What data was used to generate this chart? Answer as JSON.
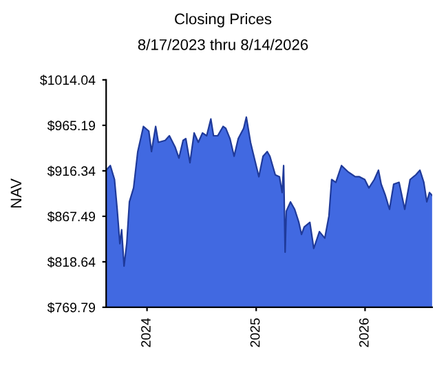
{
  "chart_data": {
    "type": "area",
    "title": "Closing Prices",
    "subtitle": "8/17/2023 thru 8/14/2026",
    "ylabel": "NAV",
    "xlim": [
      "2023-08-17",
      "2026-08-14"
    ],
    "xticks": [
      {
        "value": "2024-01-01",
        "label": "2024"
      },
      {
        "value": "2025-01-01",
        "label": "2025"
      },
      {
        "value": "2026-01-01",
        "label": "2026"
      }
    ],
    "ylim": [
      769.79,
      1014.04
    ],
    "yticks": [
      {
        "value": 769.79,
        "label": "$769.79"
      },
      {
        "value": 818.64,
        "label": "$818.64"
      },
      {
        "value": 867.49,
        "label": "$867.49"
      },
      {
        "value": 916.34,
        "label": "$916.34"
      },
      {
        "value": 965.19,
        "label": "$965.19"
      },
      {
        "value": 1014.04,
        "label": "$1014.04"
      }
    ],
    "grid": false,
    "x": [
      "2023-08-17",
      "2023-08-31",
      "2023-09-14",
      "2023-09-23",
      "2023-10-02",
      "2023-10-08",
      "2023-10-16",
      "2023-10-25",
      "2023-11-03",
      "2023-11-17",
      "2023-12-01",
      "2023-12-20",
      "2024-01-07",
      "2024-01-16",
      "2024-01-30",
      "2024-02-08",
      "2024-03-02",
      "2024-03-16",
      "2024-04-04",
      "2024-04-17",
      "2024-05-01",
      "2024-05-10",
      "2024-05-24",
      "2024-06-07",
      "2024-06-21",
      "2024-07-05",
      "2024-07-19",
      "2024-08-02",
      "2024-08-11",
      "2024-08-25",
      "2024-09-12",
      "2024-09-21",
      "2024-10-05",
      "2024-10-19",
      "2024-11-02",
      "2024-11-20",
      "2024-11-29",
      "2024-12-13",
      "2024-12-22",
      "2025-01-10",
      "2025-01-24",
      "2025-02-07",
      "2025-02-16",
      "2025-03-06",
      "2025-03-20",
      "2025-03-29",
      "2025-04-03",
      "2025-04-08",
      "2025-04-12",
      "2025-04-26",
      "2025-05-10",
      "2025-05-24",
      "2025-06-02",
      "2025-06-11",
      "2025-06-30",
      "2025-07-13",
      "2025-08-01",
      "2025-08-19",
      "2025-09-02",
      "2025-09-11",
      "2025-09-25",
      "2025-10-14",
      "2025-11-06",
      "2025-11-29",
      "2025-12-13",
      "2025-12-31",
      "2026-01-14",
      "2026-02-01",
      "2026-02-15",
      "2026-02-24",
      "2026-03-10",
      "2026-03-24",
      "2026-04-07",
      "2026-04-25",
      "2026-05-14",
      "2026-06-01",
      "2026-06-20",
      "2026-07-04",
      "2026-07-17",
      "2026-07-27",
      "2026-08-05",
      "2026-08-14"
    ],
    "series": [
      {
        "color": "#4169e1",
        "values": [
          917,
          922,
          907,
          875,
          838,
          853,
          814,
          838,
          883,
          898,
          937,
          964,
          959,
          937,
          964,
          947,
          949,
          954,
          942,
          930,
          949,
          951,
          925,
          957,
          947,
          957,
          954,
          972,
          954,
          954,
          964,
          962,
          951,
          932,
          951,
          962,
          974,
          947,
          935,
          910,
          932,
          937,
          932,
          912,
          910,
          893,
          922,
          829,
          873,
          883,
          875,
          861,
          848,
          856,
          861,
          833,
          851,
          844,
          868,
          907,
          904,
          922,
          915,
          910,
          910,
          907,
          898,
          907,
          917,
          902,
          890,
          875,
          902,
          904,
          875,
          907,
          912,
          917,
          904,
          883,
          893,
          890
        ]
      }
    ]
  }
}
